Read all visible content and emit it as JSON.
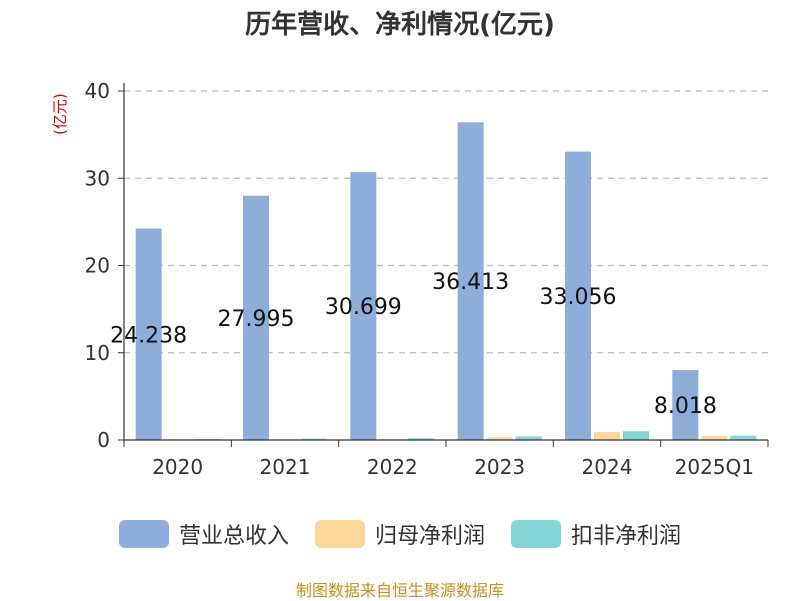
{
  "title": "历年营收、净利情况(亿元)",
  "unit_label": "(亿元)",
  "source": "制图数据来自恒生聚源数据库",
  "chart_data": {
    "type": "bar",
    "categories": [
      "2020",
      "2021",
      "2022",
      "2023",
      "2024",
      "2025Q1"
    ],
    "ylim": [
      0,
      40
    ],
    "yticks": [
      0,
      10,
      20,
      30,
      40
    ],
    "grid": true,
    "legend_position": "bottom",
    "series": [
      {
        "name": "营业总收入",
        "color": "#8eadd8",
        "values": [
          24.238,
          27.995,
          30.699,
          36.413,
          33.056,
          8.018
        ],
        "labels": [
          "24.238",
          "27.995",
          "30.699",
          "36.413",
          "33.056",
          "8.018"
        ]
      },
      {
        "name": "归母净利润",
        "color": "#fdd698",
        "values": [
          0.1,
          0.1,
          0.1,
          0.3,
          0.9,
          0.45
        ]
      },
      {
        "name": "扣非净利润",
        "color": "#84d5d6",
        "values": [
          0.1,
          0.15,
          0.2,
          0.4,
          1.0,
          0.5
        ]
      }
    ]
  }
}
